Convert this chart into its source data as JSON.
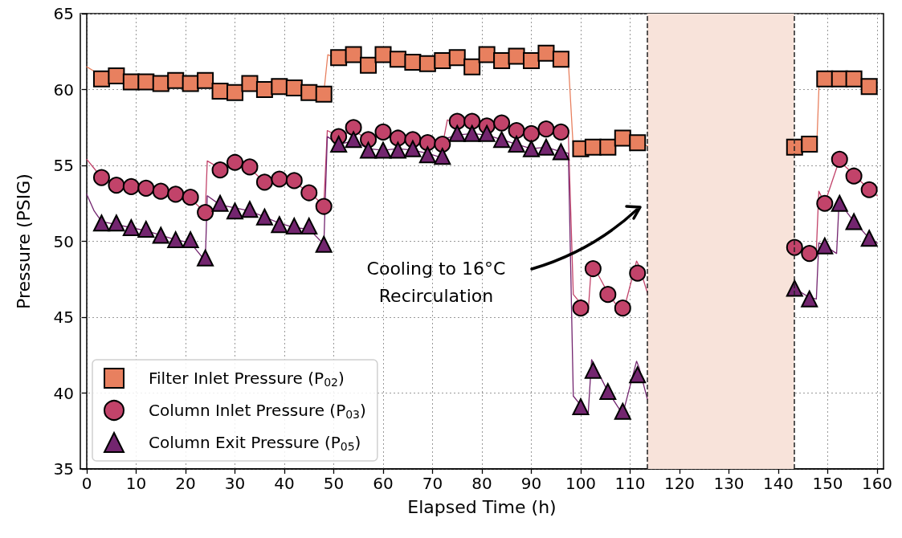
{
  "chart_data": {
    "type": "scatter",
    "xlabel": "Elapsed Time (h)",
    "ylabel": "Pressure (PSIG)",
    "xlim": [
      -1.3,
      161.3
    ],
    "xticks": [
      0,
      10,
      20,
      30,
      40,
      50,
      60,
      70,
      80,
      90,
      100,
      110,
      120,
      130,
      140,
      150,
      160
    ],
    "ylim": [
      35,
      65
    ],
    "yticks": [
      35,
      40,
      45,
      50,
      55,
      60,
      65
    ],
    "grid": true,
    "legend": "bottom left",
    "series": [
      {
        "type": "line",
        "color": "#e8805f",
        "marker": "none",
        "x": [
          0,
          1.5,
          3,
          6,
          9,
          12,
          15,
          18,
          21,
          24,
          27,
          30,
          33,
          36,
          39,
          42,
          45,
          48,
          48.8,
          51,
          54,
          57,
          60,
          63,
          66,
          69,
          72,
          75,
          78,
          81,
          84,
          87,
          90,
          93,
          96,
          97.5,
          98.5,
          100,
          102.5,
          105.5,
          108.5,
          111.5,
          113.5,
          128,
          143.3,
          146.3,
          147.8,
          148.3,
          149.4,
          152.4,
          155.3,
          158.4,
          160
        ],
        "values": [
          61.5,
          61.2,
          60.9,
          60.8,
          60.5,
          60.6,
          60.5,
          60.5,
          60.4,
          60.6,
          60.3,
          60.1,
          60.2,
          60.1,
          60.2,
          60.0,
          59.9,
          59.8,
          62.3,
          62.0,
          62.2,
          61.7,
          62.2,
          62.0,
          61.8,
          61.7,
          62.0,
          62.1,
          61.6,
          62.2,
          61.9,
          62.1,
          61.8,
          62.3,
          62.0,
          61.8,
          56.1,
          56.2,
          56.3,
          56.2,
          56.5,
          56.3,
          56.3,
          null,
          56.2,
          56.4,
          56.4,
          60.8,
          60.7,
          60.7,
          60.6,
          60.3,
          60.1
        ]
      },
      {
        "type": "line",
        "color": "#c2436a",
        "marker": "none",
        "x": [
          0,
          1.5,
          3,
          6,
          9,
          12,
          15,
          18,
          21,
          24,
          24.4,
          27,
          30,
          33,
          36,
          39,
          42,
          45,
          48,
          48.7,
          51,
          54,
          57,
          60,
          63,
          66,
          69,
          72,
          73,
          75,
          78,
          81,
          84,
          87,
          90,
          93,
          96,
          97.5,
          98.5,
          101.5,
          102.2,
          105.5,
          108.5,
          111.3,
          111.8,
          113.5,
          128,
          143.3,
          146.3,
          147.7,
          148.2,
          149.4,
          152.3,
          155.3,
          158.4,
          160
        ],
        "values": [
          55.4,
          54.8,
          54.2,
          53.8,
          53.6,
          53.5,
          53.3,
          53.1,
          52.8,
          51.9,
          55.3,
          54.8,
          55.1,
          54.8,
          53.9,
          54.2,
          53.9,
          53.2,
          52.4,
          57.3,
          56.9,
          57.3,
          56.7,
          57.1,
          56.9,
          56.7,
          56.5,
          56.3,
          58.0,
          57.8,
          57.9,
          57.5,
          57.9,
          57.3,
          57.1,
          57.3,
          57.1,
          57.0,
          46.5,
          45.3,
          48.6,
          46.6,
          45.2,
          48.7,
          48.4,
          46.6,
          null,
          49.7,
          49.2,
          49.4,
          53.3,
          52.5,
          55.3,
          54.4,
          53.4,
          53.0
        ]
      },
      {
        "type": "line",
        "color": "#73256f",
        "marker": "none",
        "x": [
          0,
          1.5,
          3,
          6,
          9,
          12,
          15,
          18,
          21,
          24,
          24.4,
          27,
          30,
          33,
          36,
          39,
          42,
          45,
          48,
          48.7,
          51,
          54,
          57,
          60,
          63,
          66,
          69,
          72,
          73,
          75,
          78,
          81,
          84,
          87,
          90,
          93,
          96,
          97.5,
          98.5,
          101.5,
          102.2,
          105.5,
          108.5,
          111.3,
          111.8,
          113.5,
          128,
          143.3,
          146.3,
          147.7,
          148.2,
          149.4,
          151.8,
          152.3,
          155.3,
          158.4,
          160
        ],
        "values": [
          53.1,
          52.0,
          51.3,
          51.1,
          50.9,
          50.7,
          50.4,
          50.1,
          49.9,
          48.7,
          53.0,
          52.4,
          52.2,
          52.0,
          51.6,
          51.2,
          50.9,
          50.8,
          49.8,
          56.9,
          56.4,
          56.6,
          56.1,
          56.0,
          56.1,
          56.0,
          55.8,
          55.5,
          56.8,
          57.0,
          57.1,
          57.0,
          56.7,
          56.4,
          56.1,
          56.2,
          55.9,
          55.8,
          39.8,
          38.6,
          42.2,
          40.1,
          38.6,
          42.1,
          41.7,
          39.6,
          null,
          46.9,
          46.3,
          46.2,
          49.9,
          49.7,
          49.2,
          52.6,
          51.3,
          50.2,
          49.9
        ]
      },
      {
        "name": "Filter Inlet Pressure (P$_{02}$)",
        "color": "#e8805f",
        "marker": "square",
        "x": [
          3,
          6,
          9,
          12,
          15,
          18,
          21,
          24,
          27,
          30,
          33,
          36,
          39,
          42,
          45,
          48,
          51,
          54,
          57,
          60,
          63,
          66,
          69,
          72,
          75,
          78,
          81,
          84,
          87,
          90,
          93,
          96,
          100,
          102.5,
          105.5,
          108.5,
          111.5,
          143.3,
          146.3,
          149.4,
          152.4,
          155.3,
          158.4
        ],
        "values": [
          60.7,
          60.9,
          60.5,
          60.5,
          60.4,
          60.6,
          60.4,
          60.6,
          59.9,
          59.8,
          60.4,
          60.0,
          60.2,
          60.1,
          59.8,
          59.7,
          62.1,
          62.3,
          61.6,
          62.3,
          62.0,
          61.8,
          61.7,
          61.9,
          62.1,
          61.5,
          62.3,
          61.9,
          62.2,
          61.9,
          62.4,
          62.0,
          56.1,
          56.2,
          56.2,
          56.8,
          56.5,
          56.2,
          56.4,
          60.7,
          60.7,
          60.7,
          60.2
        ]
      },
      {
        "name": "Column Inlet Pressure (P$_{03}$)",
        "color": "#c2436a",
        "marker": "circle",
        "x": [
          3,
          6,
          9,
          12,
          15,
          18,
          21,
          24,
          27,
          30,
          33,
          36,
          39,
          42,
          45,
          48,
          51,
          54,
          57,
          60,
          63,
          66,
          69,
          72,
          75,
          78,
          81,
          84,
          87,
          90,
          93,
          96,
          100,
          102.5,
          105.5,
          108.5,
          111.5,
          143.3,
          146.3,
          149.4,
          152.4,
          155.3,
          158.4
        ],
        "values": [
          54.2,
          53.7,
          53.6,
          53.5,
          53.3,
          53.1,
          52.9,
          51.9,
          54.7,
          55.2,
          54.9,
          53.9,
          54.1,
          54.0,
          53.2,
          52.3,
          56.9,
          57.5,
          56.7,
          57.2,
          56.8,
          56.7,
          56.5,
          56.4,
          57.9,
          57.9,
          57.6,
          57.8,
          57.3,
          57.1,
          57.4,
          57.2,
          45.6,
          48.2,
          46.5,
          45.6,
          47.9,
          49.6,
          49.2,
          52.5,
          55.4,
          54.3,
          53.4
        ]
      },
      {
        "name": "Column Exit Pressure (P$_{05}$)",
        "color": "#73256f",
        "marker": "triangle",
        "x": [
          3,
          6,
          9,
          12,
          15,
          18,
          21,
          24,
          27,
          30,
          33,
          36,
          39,
          42,
          45,
          48,
          51,
          54,
          57,
          60,
          63,
          66,
          69,
          72,
          75,
          78,
          81,
          84,
          87,
          90,
          93,
          96,
          100,
          102.5,
          105.5,
          108.5,
          111.5,
          143.3,
          146.3,
          149.4,
          152.4,
          155.3,
          158.4
        ],
        "values": [
          51.2,
          51.2,
          50.9,
          50.8,
          50.4,
          50.1,
          50.1,
          48.9,
          52.5,
          52.0,
          52.1,
          51.6,
          51.1,
          51.0,
          51.0,
          49.8,
          56.4,
          56.7,
          56.0,
          56.0,
          56.0,
          56.1,
          55.7,
          55.6,
          57.1,
          57.1,
          57.1,
          56.7,
          56.4,
          56.1,
          56.2,
          55.9,
          39.1,
          41.5,
          40.1,
          38.8,
          41.2,
          46.9,
          46.2,
          49.7,
          52.5,
          51.3,
          50.2
        ]
      }
    ],
    "ref_lines": [
      {
        "axis": "x",
        "value": 113.5,
        "color": "#222222",
        "line_style": "dashed"
      },
      {
        "axis": "x",
        "value": 143.2,
        "color": "#222222",
        "line_style": "dashed"
      }
    ],
    "bands": [
      {
        "axis": "x",
        "from": 113.5,
        "to": 143.2,
        "color": "#f8e3da"
      }
    ],
    "annotations": [
      "Cooling to 16°C\nRecirculation"
    ]
  }
}
